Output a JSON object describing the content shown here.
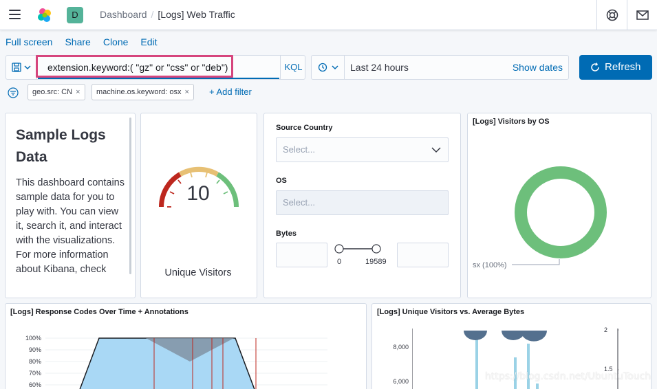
{
  "header": {
    "space_initial": "D",
    "breadcrumbs": [
      "Dashboard",
      "[Logs] Web Traffic"
    ],
    "separator": "/"
  },
  "top_nav": {
    "full_screen": "Full screen",
    "share": "Share",
    "clone": "Clone",
    "edit": "Edit"
  },
  "query": {
    "value": "extension.keyword:( \"gz\" or \"css\" or \"deb\")",
    "language": "KQL"
  },
  "date_picker": {
    "range": "Last 24 hours",
    "show_dates": "Show dates"
  },
  "refresh_label": "Refresh",
  "filters": {
    "pills": [
      "geo.src: CN",
      "machine.os.keyword: osx"
    ],
    "close_glyph": "×",
    "add_label": "+ Add filter"
  },
  "markdown_panel": {
    "title": "Sample Logs Data",
    "body": "This dashboard contains sample data for you to play with. You can view it, search it, and interact with the visualizations. For more information about Kibana, check"
  },
  "gauge_panel": {
    "value": "10",
    "label": "Unique Visitors"
  },
  "controls_panel": {
    "source_country_label": "Source Country",
    "source_country_placeholder": "Select...",
    "os_label": "OS",
    "os_placeholder": "Select...",
    "bytes_label": "Bytes",
    "bytes_min": "0",
    "bytes_max": "19589"
  },
  "visitors_os_panel": {
    "title": "[Logs] Visitors by OS",
    "legend": "sx (100%)"
  },
  "response_codes_panel": {
    "title": "[Logs] Response Codes Over Time + Annotations",
    "y_ticks": [
      "100%",
      "90%",
      "80%",
      "70%",
      "60%"
    ]
  },
  "unique_visitors_panel": {
    "title": "[Logs] Unique Visitors vs. Average Bytes",
    "left_ticks": [
      "8,000",
      "6,000"
    ],
    "right_ticks": [
      "2",
      "1.5"
    ]
  },
  "watermark": "https://blog.csdn.net/UbuntuTouch",
  "colors": {
    "accent": "#006bb4",
    "highlight": "#d6457d",
    "donut": "#6dbf7b",
    "area_fill": "#a9d8f5",
    "annotation_line": "#bd271e"
  }
}
